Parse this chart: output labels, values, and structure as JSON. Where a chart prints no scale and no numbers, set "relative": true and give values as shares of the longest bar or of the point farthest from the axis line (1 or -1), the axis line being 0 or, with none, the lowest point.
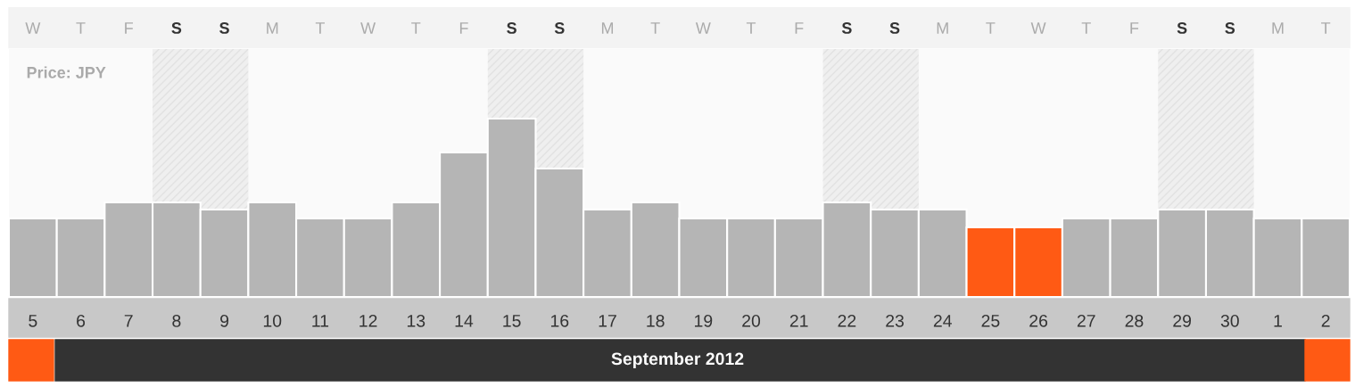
{
  "chart_data": {
    "type": "bar",
    "title": "Price: JPY",
    "relative": true,
    "categories": [
      "5",
      "6",
      "7",
      "8",
      "9",
      "10",
      "11",
      "12",
      "13",
      "14",
      "15",
      "16",
      "17",
      "18",
      "19",
      "20",
      "21",
      "22",
      "23",
      "24",
      "25",
      "26",
      "27",
      "28",
      "29",
      "30",
      "1",
      "2"
    ],
    "values": [
      0.44,
      0.44,
      0.53,
      0.53,
      0.49,
      0.53,
      0.44,
      0.44,
      0.53,
      0.81,
      1,
      0.72,
      0.49,
      0.53,
      0.44,
      0.44,
      0.44,
      0.53,
      0.49,
      0.49,
      0.39,
      0.39,
      0.44,
      0.44,
      0.49,
      0.49,
      0.44,
      0.44
    ],
    "colors": [
      "#b5b5b5",
      "#b5b5b5",
      "#b5b5b5",
      "#b5b5b5",
      "#b5b5b5",
      "#b5b5b5",
      "#b5b5b5",
      "#b5b5b5",
      "#b5b5b5",
      "#b5b5b5",
      "#b5b5b5",
      "#b5b5b5",
      "#b5b5b5",
      "#b5b5b5",
      "#b5b5b5",
      "#b5b5b5",
      "#b5b5b5",
      "#b5b5b5",
      "#b5b5b5",
      "#b5b5b5",
      "#ff5a14",
      "#ff5a14",
      "#b5b5b5",
      "#b5b5b5",
      "#b5b5b5",
      "#b5b5b5",
      "#b5b5b5",
      "#b5b5b5"
    ],
    "bands": [
      {
        "axis": "x",
        "from": "8",
        "to": "9",
        "color": "#efefef"
      },
      {
        "axis": "x",
        "from": "15",
        "to": "16",
        "color": "#efefef"
      },
      {
        "axis": "x",
        "from": "22",
        "to": "23",
        "color": "#efefef"
      },
      {
        "axis": "x",
        "from": "29",
        "to": "30",
        "color": "#efefef"
      }
    ],
    "annotations": [
      "W",
      "T",
      "F",
      "S",
      "S",
      "M",
      "T",
      "W",
      "T",
      "F",
      "S",
      "S",
      "M",
      "T",
      "W",
      "T",
      "F",
      "S",
      "S",
      "M",
      "T",
      "W",
      "T",
      "F",
      "S",
      "S",
      "M",
      "T",
      "September 2012"
    ],
    "grid": false,
    "legend": false
  }
}
